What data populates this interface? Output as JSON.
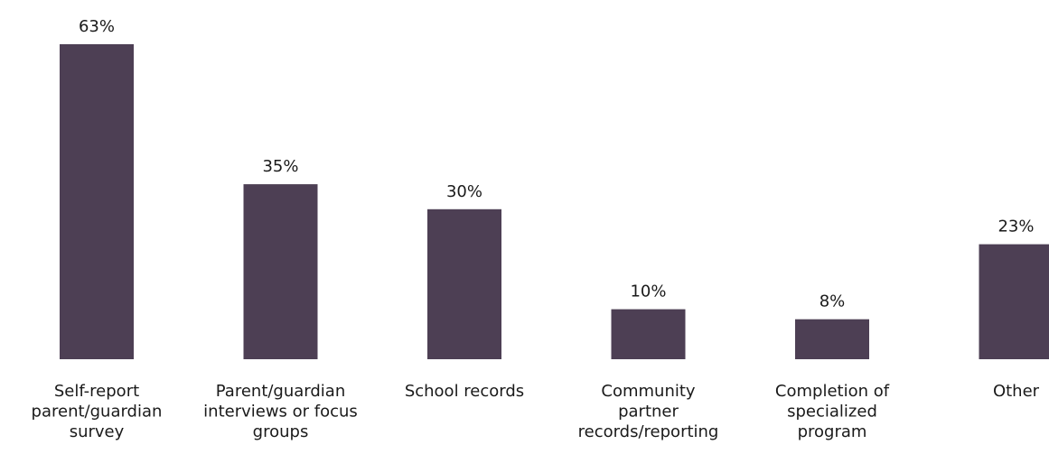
{
  "chart_data": {
    "type": "bar",
    "categories": [
      [
        "Self-report",
        "parent/guardian",
        "survey"
      ],
      [
        "Parent/guardian",
        "interviews or focus",
        "groups"
      ],
      [
        "School records"
      ],
      [
        "Community",
        "partner",
        "records/reporting"
      ],
      [
        "Completion of",
        "specialized",
        "program"
      ],
      [
        "Other"
      ]
    ],
    "values": [
      63,
      35,
      30,
      10,
      8,
      23
    ],
    "value_labels": [
      "63%",
      "35%",
      "30%",
      "10%",
      "8%",
      "23%"
    ],
    "ylim": [
      0,
      63
    ],
    "grid": false,
    "legend": "none",
    "colors": {
      "bar": "#4d3f54",
      "text": "#1a1a1a"
    }
  }
}
